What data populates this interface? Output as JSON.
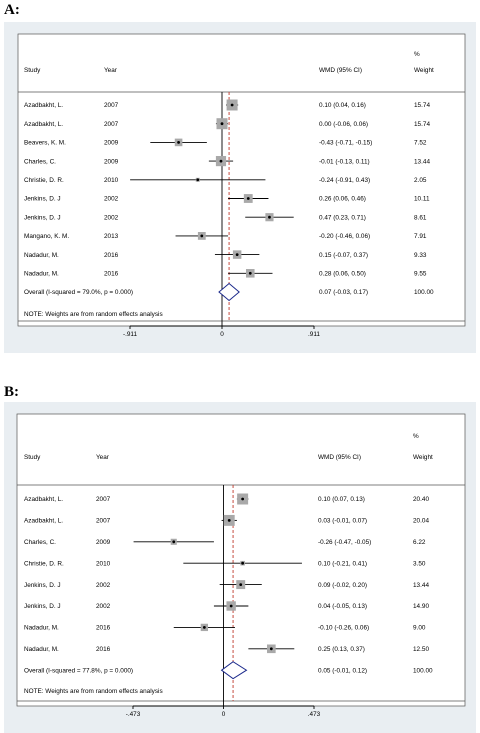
{
  "chart_data": [
    {
      "type": "forest",
      "panel_label": "A:",
      "headers": {
        "study": "Study",
        "year": "Year",
        "effect": "WMD (95% CI)",
        "weight_pct": "%",
        "weight": "Weight"
      },
      "studies": [
        {
          "study": "Azadbakht, L.",
          "year": "2007",
          "est": 0.1,
          "lo": 0.04,
          "hi": 0.16,
          "ci_text": "0.10 (0.04, 0.16)",
          "weight": "15.74"
        },
        {
          "study": "Azadbakht, L.",
          "year": "2007",
          "est": 0.0,
          "lo": -0.06,
          "hi": 0.06,
          "ci_text": "0.00 (-0.06, 0.06)",
          "weight": "15.74"
        },
        {
          "study": "Beavers, K. M.",
          "year": "2009",
          "est": -0.43,
          "lo": -0.71,
          "hi": -0.15,
          "ci_text": "-0.43 (-0.71, -0.15)",
          "weight": "7.52"
        },
        {
          "study": "Charles, C.",
          "year": "2009",
          "est": -0.01,
          "lo": -0.13,
          "hi": 0.11,
          "ci_text": "-0.01 (-0.13, 0.11)",
          "weight": "13.44"
        },
        {
          "study": "Christie, D. R.",
          "year": "2010",
          "est": -0.24,
          "lo": -0.91,
          "hi": 0.43,
          "ci_text": "-0.24 (-0.91, 0.43)",
          "weight": "2.05"
        },
        {
          "study": "Jenkins, D. J",
          "year": "2002",
          "est": 0.26,
          "lo": 0.06,
          "hi": 0.46,
          "ci_text": "0.26 (0.06, 0.46)",
          "weight": "10.11"
        },
        {
          "study": "Jenkins, D. J",
          "year": "2002",
          "est": 0.47,
          "lo": 0.23,
          "hi": 0.71,
          "ci_text": "0.47 (0.23, 0.71)",
          "weight": "8.61"
        },
        {
          "study": "Mangano, K. M.",
          "year": "2013",
          "est": -0.2,
          "lo": -0.46,
          "hi": 0.06,
          "ci_text": "-0.20 (-0.46, 0.06)",
          "weight": "7.91"
        },
        {
          "study": "Nadadur, M.",
          "year": "2016",
          "est": 0.15,
          "lo": -0.07,
          "hi": 0.37,
          "ci_text": "0.15 (-0.07, 0.37)",
          "weight": "9.33"
        },
        {
          "study": "Nadadur, M.",
          "year": "2016",
          "est": 0.28,
          "lo": 0.06,
          "hi": 0.5,
          "ci_text": "0.28 (0.06, 0.50)",
          "weight": "9.55"
        }
      ],
      "overall": {
        "label": "Overall  (I-squared = 79.0%, p = 0.000)",
        "est": 0.07,
        "lo": -0.03,
        "hi": 0.17,
        "ci_text": "0.07 (-0.03, 0.17)",
        "weight": "100.00"
      },
      "note": "NOTE: Weights are from random effects analysis",
      "xlim": [
        -0.911,
        0.911
      ],
      "ticks": [
        {
          "v": -0.911,
          "label": "-.911"
        },
        {
          "v": 0,
          "label": "0"
        },
        {
          "v": 0.911,
          "label": ".911"
        }
      ],
      "colors": {
        "background": "#e9eef2",
        "box": "#a9a9a9",
        "diamond": "#1c2a8c",
        "overall_line": "#c0392b"
      }
    },
    {
      "type": "forest",
      "panel_label": "B:",
      "headers": {
        "study": "Study",
        "year": "Year",
        "effect": "WMD (95% CI)",
        "weight_pct": "%",
        "weight": "Weight"
      },
      "studies": [
        {
          "study": "Azadbakht, L.",
          "year": "2007",
          "est": 0.1,
          "lo": 0.07,
          "hi": 0.13,
          "ci_text": "0.10 (0.07, 0.13)",
          "weight": "20.40"
        },
        {
          "study": "Azadbakht, L.",
          "year": "2007",
          "est": 0.03,
          "lo": -0.01,
          "hi": 0.07,
          "ci_text": "0.03 (-0.01, 0.07)",
          "weight": "20.04"
        },
        {
          "study": "Charles, C.",
          "year": "2009",
          "est": -0.26,
          "lo": -0.47,
          "hi": -0.05,
          "ci_text": "-0.26 (-0.47, -0.05)",
          "weight": "6.22"
        },
        {
          "study": "Christie, D. R.",
          "year": "2010",
          "est": 0.1,
          "lo": -0.21,
          "hi": 0.41,
          "ci_text": "0.10 (-0.21, 0.41)",
          "weight": "3.50"
        },
        {
          "study": "Jenkins, D. J",
          "year": "2002",
          "est": 0.09,
          "lo": -0.02,
          "hi": 0.2,
          "ci_text": "0.09 (-0.02, 0.20)",
          "weight": "13.44"
        },
        {
          "study": "Jenkins, D. J",
          "year": "2002",
          "est": 0.04,
          "lo": -0.05,
          "hi": 0.13,
          "ci_text": "0.04 (-0.05, 0.13)",
          "weight": "14.90"
        },
        {
          "study": "Nadadur, M.",
          "year": "2016",
          "est": -0.1,
          "lo": -0.26,
          "hi": 0.06,
          "ci_text": "-0.10 (-0.26, 0.06)",
          "weight": "9.00"
        },
        {
          "study": "Nadadur, M.",
          "year": "2016",
          "est": 0.25,
          "lo": 0.13,
          "hi": 0.37,
          "ci_text": "0.25 (0.13, 0.37)",
          "weight": "12.50"
        }
      ],
      "overall": {
        "label": "Overall  (I-squared = 77.8%, p = 0.000)",
        "est": 0.05,
        "lo": -0.01,
        "hi": 0.12,
        "ci_text": "0.05 (-0.01, 0.12)",
        "weight": "100.00"
      },
      "note": "NOTE: Weights are from random effects analysis",
      "xlim": [
        -0.473,
        0.473
      ],
      "ticks": [
        {
          "v": -0.473,
          "label": "-.473"
        },
        {
          "v": 0,
          "label": "0"
        },
        {
          "v": 0.473,
          "label": ".473"
        }
      ],
      "colors": {
        "background": "#e9eef2",
        "box": "#a9a9a9",
        "diamond": "#1c2a8c",
        "overall_line": "#c0392b"
      }
    }
  ]
}
